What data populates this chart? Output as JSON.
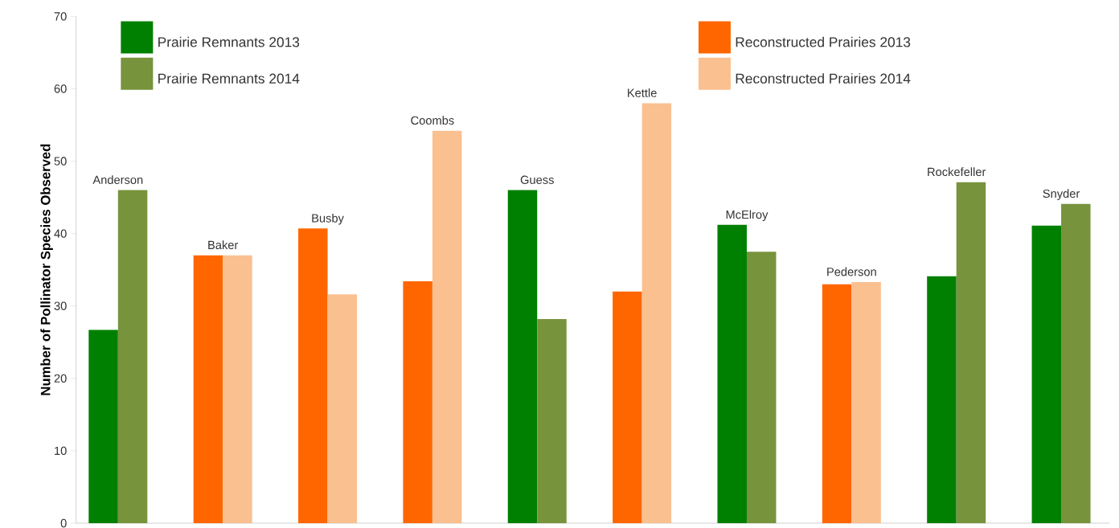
{
  "chart_data": {
    "type": "bar",
    "ylabel": "Number of Pollinator Species Observed",
    "categories": [
      "Anderson",
      "Baker",
      "Busby",
      "Coombs",
      "Guess",
      "Kettle",
      "McElroy",
      "Pederson",
      "Rockefeller",
      "Snyder"
    ],
    "series": [
      {
        "name": "Prairie Remnants 2013",
        "color": "#008000",
        "values": [
          26.7,
          null,
          null,
          null,
          46,
          null,
          41.2,
          null,
          34.1,
          41.1
        ]
      },
      {
        "name": "Prairie Remnants 2014",
        "color": "#77933c",
        "values": [
          46,
          null,
          null,
          null,
          28.2,
          null,
          37.5,
          null,
          47.1,
          44.1
        ]
      },
      {
        "name": "Reconstructed Prairies 2013",
        "color": "#ff6600",
        "values": [
          null,
          37,
          40.7,
          33.4,
          null,
          32,
          null,
          33,
          null,
          null
        ]
      },
      {
        "name": "Reconstructed Prairies 2014",
        "color": "#fac090",
        "values": [
          null,
          37,
          31.6,
          54.2,
          null,
          58,
          null,
          33.3,
          null,
          null
        ]
      }
    ],
    "ylim": [
      0,
      70
    ],
    "yticks": [
      0,
      10,
      20,
      30,
      40,
      50,
      60,
      70
    ],
    "tick_labels": "y",
    "legend": "top"
  }
}
